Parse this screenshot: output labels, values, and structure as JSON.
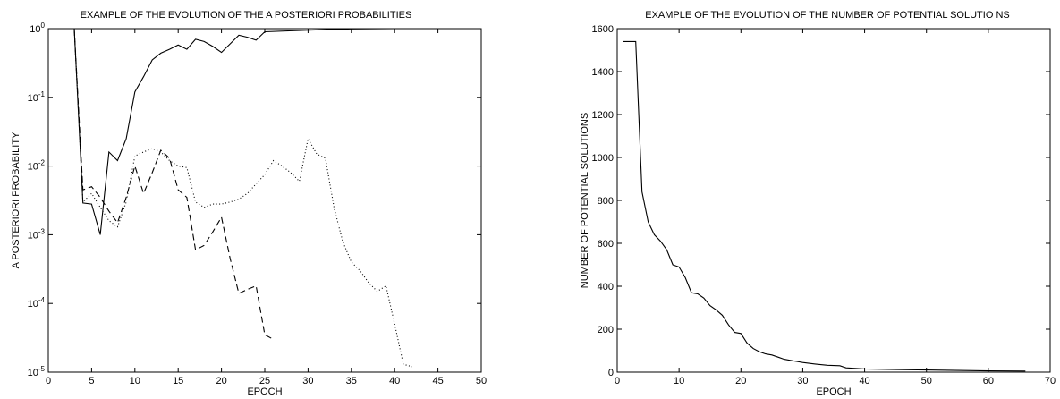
{
  "chart_data": [
    {
      "type": "line",
      "title": "EXAMPLE OF THE EVOLUTION OF THE A POSTERIORI PROBABILITIES",
      "xlabel": "EPOCH",
      "ylabel": "A POSTERIORI PROBABILITY",
      "xlim": [
        0,
        50
      ],
      "ylim": [
        1e-05,
        1
      ],
      "yscale": "log",
      "grid": false,
      "xticks": [
        0,
        5,
        10,
        15,
        20,
        25,
        30,
        35,
        40,
        45,
        50
      ],
      "xtick_labels": [
        "0",
        "5",
        "10",
        "15",
        "20",
        "25",
        "30",
        "35",
        "40",
        "45",
        "50"
      ],
      "yticks": [
        1e-05,
        0.0001,
        0.001,
        0.01,
        0.1,
        1
      ],
      "ytick_labels": [
        {
          "base": "10",
          "exp": "-5"
        },
        {
          "base": "10",
          "exp": "-4"
        },
        {
          "base": "10",
          "exp": "-3"
        },
        {
          "base": "10",
          "exp": "-2"
        },
        {
          "base": "10",
          "exp": "-1"
        },
        {
          "base": "10",
          "exp": "0"
        }
      ],
      "series": [
        {
          "style": "solid",
          "x": [
            3,
            4,
            5,
            6,
            7,
            8,
            9,
            10,
            11,
            12,
            13,
            14,
            15,
            16,
            17,
            18,
            19,
            20,
            21,
            22,
            23,
            24,
            25,
            30,
            35,
            40,
            50
          ],
          "y": [
            1.0,
            0.0029,
            0.0028,
            0.001,
            0.016,
            0.012,
            0.025,
            0.12,
            0.2,
            0.35,
            0.44,
            0.5,
            0.58,
            0.5,
            0.7,
            0.65,
            0.55,
            0.45,
            0.6,
            0.8,
            0.75,
            0.68,
            0.9,
            0.95,
            0.99,
            1.0,
            1.0
          ]
        },
        {
          "style": "dashed",
          "x": [
            3,
            4,
            5,
            6,
            7,
            8,
            9,
            10,
            11,
            12,
            13,
            14,
            15,
            16,
            17,
            18,
            19,
            20,
            21,
            22,
            23,
            24,
            25,
            26
          ],
          "y": [
            1.0,
            0.0045,
            0.005,
            0.0035,
            0.0022,
            0.0015,
            0.0035,
            0.01,
            0.004,
            0.008,
            0.017,
            0.013,
            0.0045,
            0.0035,
            0.0006,
            0.0007,
            0.0011,
            0.0018,
            0.00045,
            0.00014,
            0.00016,
            0.00018,
            3.5e-05,
            3e-05
          ]
        },
        {
          "style": "dotted",
          "x": [
            3,
            4,
            5,
            6,
            7,
            8,
            9,
            10,
            11,
            12,
            13,
            14,
            15,
            16,
            17,
            18,
            19,
            20,
            21,
            22,
            23,
            24,
            25,
            26,
            27,
            28,
            29,
            30,
            31,
            32,
            33,
            34,
            35,
            36,
            37,
            38,
            39,
            40,
            41,
            42
          ],
          "y": [
            1.0,
            0.003,
            0.004,
            0.0025,
            0.0016,
            0.0013,
            0.003,
            0.014,
            0.016,
            0.018,
            0.016,
            0.012,
            0.01,
            0.0095,
            0.003,
            0.0025,
            0.0028,
            0.0028,
            0.003,
            0.0033,
            0.004,
            0.0055,
            0.0075,
            0.012,
            0.01,
            0.008,
            0.006,
            0.025,
            0.015,
            0.013,
            0.0025,
            0.0008,
            0.0004,
            0.0003,
            0.0002,
            0.00015,
            0.00018,
            5e-05,
            1.3e-05,
            1.2e-05
          ]
        }
      ]
    },
    {
      "type": "line",
      "title": "EXAMPLE OF THE EVOLUTION OF THE NUMBER OF POTENTIAL SOLUTIO NS",
      "xlabel": "EPOCH",
      "ylabel": "NUMBER OF POTENTIAL SOLUTIONS",
      "xlim": [
        0,
        70
      ],
      "ylim": [
        0,
        1600
      ],
      "grid": false,
      "xticks": [
        0,
        10,
        20,
        30,
        40,
        50,
        60,
        70
      ],
      "xtick_labels": [
        "0",
        "10",
        "20",
        "30",
        "40",
        "50",
        "60",
        "70"
      ],
      "yticks": [
        0,
        200,
        400,
        600,
        800,
        1000,
        1200,
        1400,
        1600
      ],
      "ytick_labels": [
        "0",
        "200",
        "400",
        "600",
        "800",
        "1000",
        "1200",
        "1400",
        "1600"
      ],
      "series": [
        {
          "style": "solid",
          "x": [
            1,
            2,
            3,
            4,
            5,
            6,
            7,
            8,
            9,
            10,
            11,
            12,
            13,
            14,
            15,
            16,
            17,
            18,
            19,
            20,
            21,
            22,
            23,
            24,
            25,
            26,
            27,
            28,
            29,
            30,
            32,
            34,
            36,
            37,
            40,
            45,
            50,
            55,
            60,
            66
          ],
          "y": [
            1540,
            1540,
            1540,
            840,
            700,
            640,
            610,
            570,
            500,
            490,
            440,
            370,
            365,
            345,
            310,
            290,
            265,
            220,
            185,
            180,
            135,
            110,
            95,
            85,
            80,
            70,
            60,
            55,
            50,
            45,
            38,
            32,
            30,
            20,
            15,
            12,
            10,
            8,
            6,
            5
          ]
        }
      ]
    }
  ]
}
